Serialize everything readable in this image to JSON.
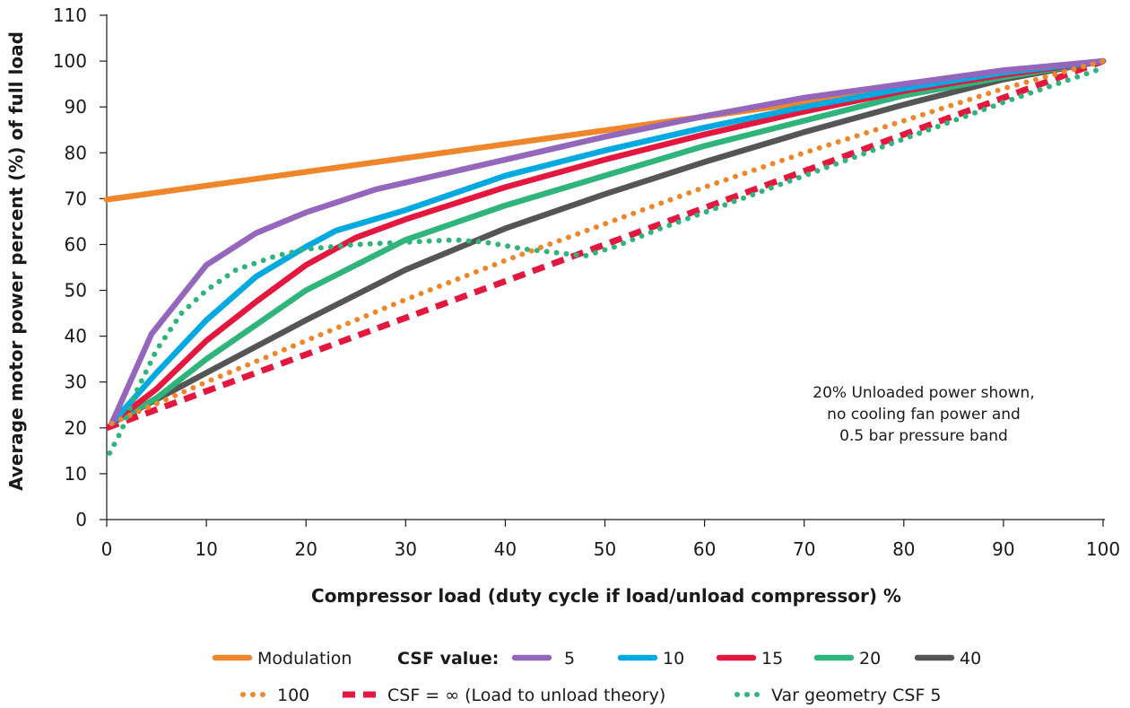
{
  "chart_data": {
    "type": "line",
    "title": "",
    "xlabel": "Compressor load (duty cycle if load/unload compressor) %",
    "ylabel": "Average motor power percent (%) of full load",
    "xlim": [
      0,
      100
    ],
    "ylim": [
      0,
      110
    ],
    "x_ticks": [
      "0",
      "10",
      "20",
      "30",
      "40",
      "50",
      "60",
      "70",
      "80",
      "90",
      "100"
    ],
    "y_ticks": [
      "0",
      "10",
      "20",
      "30",
      "40",
      "50",
      "60",
      "70",
      "80",
      "90",
      "100",
      "110"
    ],
    "grid": false,
    "legend_position": "bottom",
    "legend_group_label": "CSF value:",
    "annotation": [
      "20% Unloaded power shown,",
      "no cooling fan power and",
      "0.5 bar pressure band"
    ],
    "series": [
      {
        "name": "Modulation",
        "color": "#f0862b",
        "style": "solid",
        "points": [
          [
            0,
            69.8
          ],
          [
            100,
            100
          ]
        ]
      },
      {
        "name": "5",
        "color": "#9467bd",
        "style": "solid",
        "points": [
          [
            0.5,
            21
          ],
          [
            4.5,
            40.5
          ],
          [
            10,
            55.5
          ],
          [
            15,
            62.5
          ],
          [
            20,
            67
          ],
          [
            27,
            72
          ],
          [
            40,
            78.5
          ],
          [
            50,
            83.5
          ],
          [
            60,
            88
          ],
          [
            70,
            92
          ],
          [
            80,
            95
          ],
          [
            90,
            98
          ],
          [
            100,
            100
          ]
        ]
      },
      {
        "name": "10",
        "color": "#00a9e0",
        "style": "solid",
        "points": [
          [
            0.5,
            21
          ],
          [
            5,
            32
          ],
          [
            10,
            43.5
          ],
          [
            15,
            53
          ],
          [
            20,
            59.5
          ],
          [
            23,
            63
          ],
          [
            30,
            67.5
          ],
          [
            40,
            75
          ],
          [
            50,
            80.5
          ],
          [
            60,
            85.5
          ],
          [
            70,
            90
          ],
          [
            80,
            94
          ],
          [
            90,
            97.5
          ],
          [
            100,
            100
          ]
        ]
      },
      {
        "name": "15",
        "color": "#e4173f",
        "style": "solid",
        "points": [
          [
            0.5,
            21
          ],
          [
            5,
            28.5
          ],
          [
            10,
            39
          ],
          [
            15,
            47.5
          ],
          [
            20,
            55.5
          ],
          [
            25,
            61.5
          ],
          [
            30,
            65.5
          ],
          [
            40,
            72.5
          ],
          [
            50,
            78.5
          ],
          [
            60,
            84
          ],
          [
            70,
            89
          ],
          [
            80,
            93.5
          ],
          [
            90,
            97
          ],
          [
            100,
            100
          ]
        ]
      },
      {
        "name": "20",
        "color": "#2fb47c",
        "style": "solid",
        "points": [
          [
            0.5,
            21
          ],
          [
            5,
            26.5
          ],
          [
            10,
            35
          ],
          [
            15,
            42.5
          ],
          [
            20,
            50
          ],
          [
            30,
            61
          ],
          [
            40,
            68.5
          ],
          [
            50,
            75
          ],
          [
            60,
            81.5
          ],
          [
            70,
            87
          ],
          [
            80,
            92.5
          ],
          [
            90,
            96.5
          ],
          [
            100,
            100
          ]
        ]
      },
      {
        "name": "40",
        "color": "#555555",
        "style": "solid",
        "points": [
          [
            0.5,
            21
          ],
          [
            10,
            32
          ],
          [
            20,
            43.5
          ],
          [
            30,
            54.5
          ],
          [
            40,
            63.5
          ],
          [
            50,
            71
          ],
          [
            60,
            78
          ],
          [
            70,
            84.5
          ],
          [
            80,
            90.5
          ],
          [
            90,
            96
          ],
          [
            100,
            100
          ]
        ]
      },
      {
        "name": "100",
        "color": "#f0862b",
        "style": "dotted",
        "points": [
          [
            0.5,
            21
          ],
          [
            10,
            30
          ],
          [
            20,
            39
          ],
          [
            30,
            48
          ],
          [
            40,
            56.5
          ],
          [
            50,
            64.5
          ],
          [
            60,
            72.5
          ],
          [
            70,
            80
          ],
          [
            80,
            87
          ],
          [
            90,
            94
          ],
          [
            100,
            100
          ]
        ]
      },
      {
        "name": "CSF = ∞ (Load to unload theory)",
        "color": "#e4173f",
        "style": "dashed",
        "points": [
          [
            0,
            20
          ],
          [
            100,
            100
          ]
        ]
      },
      {
        "name": "Var geometry CSF 5",
        "color": "#2fb47c",
        "style": "dotted",
        "points": [
          [
            0.3,
            14.5
          ],
          [
            1.5,
            19.5
          ],
          [
            3,
            28
          ],
          [
            5,
            37
          ],
          [
            7.5,
            45
          ],
          [
            10,
            50
          ],
          [
            13,
            54.5
          ],
          [
            17,
            57.5
          ],
          [
            20,
            59
          ],
          [
            25,
            60
          ],
          [
            30,
            60.5
          ],
          [
            35,
            61
          ],
          [
            38,
            60.5
          ],
          [
            42,
            59
          ],
          [
            46,
            58
          ],
          [
            48,
            57.5
          ],
          [
            51,
            59.5
          ],
          [
            55,
            63
          ],
          [
            60,
            67
          ],
          [
            70,
            75
          ],
          [
            80,
            83
          ],
          [
            90,
            91
          ],
          [
            100,
            98.5
          ]
        ]
      }
    ]
  }
}
